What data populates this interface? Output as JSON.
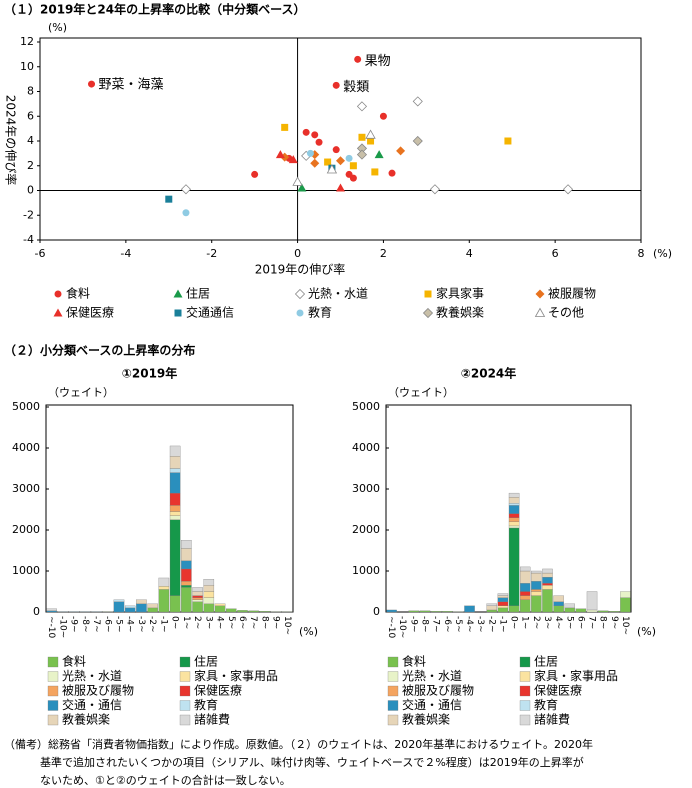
{
  "section_title": "（２）小分類ベースの上昇率の分布",
  "notes": [
    "（備考）総務省「消費者物価指数」により作成。原数値。（２）のウェイトは、2020年基準におけるウェイト。2020年",
    "基準で追加されたいくつかの項目（シリアル、味付け肉等、ウェイトベースで２%程度）は2019年の上昇率が",
    "ないため、①と②のウェイトの合計は一致しない。"
  ],
  "chart_data": [
    {
      "type": "scatter",
      "title": "（１）2019年と24年の上昇率の比較（中分類ベース）",
      "xlabel": "2019年の伸び率",
      "ylabel": "2024年の伸び率",
      "xunit": "(%)",
      "yunit": "(%)",
      "xlim": [
        -6,
        8
      ],
      "ylim": [
        -4,
        12
      ],
      "xticks": [
        -6,
        -4,
        -2,
        0,
        2,
        4,
        6,
        8
      ],
      "yticks": [
        -4,
        -2,
        0,
        2,
        4,
        6,
        8,
        10,
        12
      ],
      "series": [
        {
          "name": "食料",
          "marker": "circle",
          "color": "#e8302a",
          "x": [
            -4.8,
            1.4,
            0.9,
            0.2,
            0.4,
            2.0,
            0.9,
            1.3,
            1.2,
            2.2,
            -1.0,
            -0.2,
            0.5
          ],
          "y": [
            8.6,
            10.6,
            8.5,
            4.7,
            4.5,
            6.0,
            3.3,
            1.0,
            1.3,
            1.4,
            1.3,
            2.6,
            3.9
          ],
          "labels": [
            "野菜・海藻",
            "果物",
            "穀類",
            null,
            null,
            null,
            null,
            null,
            null,
            null,
            null,
            null,
            null
          ]
        },
        {
          "name": "住居",
          "marker": "triangle",
          "color": "#1a9a4a",
          "x": [
            0.1,
            1.9
          ],
          "y": [
            0.2,
            2.9
          ]
        },
        {
          "name": "光熱・水道",
          "marker": "diamond",
          "color": "#ffffff",
          "edgecolor": "#888888",
          "x": [
            -2.6,
            3.2,
            6.3,
            2.8,
            1.5,
            0.2
          ],
          "y": [
            0.1,
            0.1,
            0.1,
            7.2,
            6.8,
            2.8
          ]
        },
        {
          "name": "家具家事",
          "marker": "square",
          "color": "#f5b400",
          "x": [
            -0.3,
            1.5,
            1.7,
            1.8,
            1.3,
            4.9,
            0.7
          ],
          "y": [
            5.1,
            4.3,
            4.0,
            1.5,
            2.0,
            4.0,
            2.3
          ]
        },
        {
          "name": "被服履物",
          "marker": "diamond",
          "color": "#e8731f",
          "x": [
            2.4,
            0.4,
            1.0,
            0.4,
            -0.3
          ],
          "y": [
            3.2,
            2.9,
            2.4,
            2.2,
            2.7
          ]
        },
        {
          "name": "保健医療",
          "marker": "triangle",
          "color": "#e8302a",
          "x": [
            -0.4,
            1.0,
            -0.1
          ],
          "y": [
            2.9,
            0.2,
            2.5
          ]
        },
        {
          "name": "交通通信",
          "marker": "square",
          "color": "#1a7f99",
          "x": [
            -3.0,
            0.8
          ],
          "y": [
            -0.7,
            1.8
          ]
        },
        {
          "name": "教育",
          "marker": "circle",
          "color": "#8fcbe3",
          "x": [
            -2.6,
            0.3,
            1.2
          ],
          "y": [
            -1.8,
            3.0,
            2.6
          ]
        },
        {
          "name": "教養娯楽",
          "marker": "diamond",
          "color": "#c8bfa8",
          "edgecolor": "#888888",
          "x": [
            1.5,
            2.8,
            1.5
          ],
          "y": [
            3.4,
            4.0,
            2.9
          ]
        },
        {
          "name": "その他",
          "marker": "triangle",
          "color": "#ffffff",
          "edgecolor": "#888888",
          "x": [
            0.0,
            1.7,
            0.8
          ],
          "y": [
            0.7,
            4.5,
            1.7
          ]
        }
      ]
    },
    {
      "type": "bar",
      "stacked": true,
      "title": "①2019年",
      "ylabel": "（ウェイト）",
      "xunit": "(%)",
      "ylim": [
        0,
        5000
      ],
      "yticks": [
        0,
        1000,
        2000,
        3000,
        4000,
        5000
      ],
      "categories": [
        "~-10",
        "-10~",
        "-9~",
        "-8~",
        "-7~",
        "-6~",
        "-5~",
        "-4~",
        "-3~",
        "-2~",
        "-1~",
        "0~",
        "1~",
        "2~",
        "3~",
        "4~",
        "5~",
        "6~",
        "7~",
        "8~",
        "9~",
        "10~"
      ],
      "series": [
        {
          "name": "食料",
          "color": "#79c14f",
          "values": [
            0,
            0,
            0,
            0,
            0,
            10,
            0,
            0,
            0,
            100,
            550,
            400,
            600,
            250,
            200,
            150,
            80,
            40,
            30,
            20,
            10,
            10
          ]
        },
        {
          "name": "住居",
          "color": "#16984a",
          "values": [
            0,
            0,
            0,
            0,
            0,
            0,
            0,
            0,
            0,
            0,
            0,
            1850,
            50,
            0,
            0,
            0,
            0,
            0,
            0,
            0,
            0,
            0
          ]
        },
        {
          "name": "光熱・水道",
          "color": "#e8f3c8",
          "values": [
            0,
            0,
            0,
            0,
            0,
            0,
            0,
            0,
            0,
            0,
            0,
            100,
            0,
            50,
            150,
            0,
            0,
            0,
            0,
            0,
            0,
            0
          ]
        },
        {
          "name": "家具・家事用品",
          "color": "#fbe3a0",
          "values": [
            0,
            0,
            0,
            0,
            0,
            0,
            0,
            0,
            0,
            0,
            80,
            100,
            0,
            0,
            150,
            50,
            0,
            0,
            0,
            0,
            0,
            0
          ]
        },
        {
          "name": "被服及び履物",
          "color": "#f4a460",
          "values": [
            0,
            0,
            0,
            0,
            0,
            0,
            0,
            0,
            0,
            0,
            0,
            150,
            100,
            50,
            0,
            0,
            0,
            0,
            0,
            0,
            0,
            0
          ]
        },
        {
          "name": "保健医療",
          "color": "#e8352e",
          "values": [
            0,
            0,
            0,
            0,
            0,
            0,
            0,
            0,
            0,
            0,
            0,
            300,
            300,
            50,
            0,
            0,
            0,
            0,
            0,
            0,
            0,
            0
          ]
        },
        {
          "name": "交通・通信",
          "color": "#2a8fbd",
          "values": [
            30,
            10,
            10,
            10,
            10,
            0,
            250,
            100,
            200,
            0,
            0,
            500,
            200,
            0,
            0,
            0,
            0,
            0,
            0,
            0,
            0,
            0
          ]
        },
        {
          "name": "教育",
          "color": "#bfe2f0",
          "values": [
            0,
            0,
            0,
            0,
            0,
            0,
            50,
            50,
            0,
            0,
            0,
            100,
            0,
            0,
            0,
            0,
            0,
            0,
            0,
            0,
            0,
            0
          ]
        },
        {
          "name": "教養娯楽",
          "color": "#e6d5b8",
          "values": [
            0,
            0,
            0,
            0,
            0,
            0,
            0,
            0,
            100,
            100,
            0,
            300,
            300,
            100,
            150,
            0,
            0,
            0,
            0,
            0,
            0,
            0
          ]
        },
        {
          "name": "諸雑費",
          "color": "#d9d9d9",
          "values": [
            50,
            0,
            0,
            0,
            0,
            0,
            0,
            0,
            0,
            0,
            200,
            250,
            200,
            100,
            150,
            0,
            0,
            0,
            0,
            0,
            0,
            0
          ]
        }
      ]
    },
    {
      "type": "bar",
      "stacked": true,
      "title": "②2024年",
      "ylabel": "（ウェイト）",
      "xunit": "(%)",
      "ylim": [
        0,
        5000
      ],
      "yticks": [
        0,
        1000,
        2000,
        3000,
        4000,
        5000
      ],
      "categories": [
        "~-10",
        "-10~",
        "-9~",
        "-8~",
        "-7~",
        "-6~",
        "-5~",
        "-4~",
        "-3~",
        "-2~",
        "-1~",
        "0~",
        "1~",
        "2~",
        "3~",
        "4~",
        "5~",
        "6~",
        "7~",
        "8~",
        "9~",
        "10~"
      ],
      "series": [
        {
          "name": "食料",
          "color": "#79c14f",
          "values": [
            0,
            0,
            30,
            30,
            20,
            20,
            10,
            0,
            0,
            50,
            100,
            150,
            300,
            400,
            550,
            150,
            100,
            80,
            0,
            30,
            20,
            350
          ]
        },
        {
          "name": "住居",
          "color": "#16984a",
          "values": [
            0,
            0,
            0,
            0,
            0,
            0,
            0,
            0,
            0,
            0,
            0,
            1900,
            0,
            0,
            0,
            0,
            0,
            0,
            0,
            0,
            0,
            0
          ]
        },
        {
          "name": "光熱・水道",
          "color": "#e8f3c8",
          "values": [
            0,
            0,
            0,
            0,
            0,
            0,
            0,
            0,
            0,
            0,
            0,
            50,
            0,
            0,
            0,
            0,
            0,
            0,
            50,
            0,
            0,
            150
          ]
        },
        {
          "name": "家具・家事用品",
          "color": "#fbe3a0",
          "values": [
            0,
            0,
            0,
            0,
            0,
            0,
            0,
            0,
            0,
            0,
            50,
            100,
            0,
            100,
            100,
            0,
            0,
            0,
            0,
            0,
            0,
            0
          ]
        },
        {
          "name": "被服及び履物",
          "color": "#f4a460",
          "values": [
            0,
            0,
            0,
            0,
            0,
            0,
            0,
            0,
            0,
            0,
            0,
            100,
            100,
            50,
            0,
            0,
            0,
            0,
            0,
            0,
            0,
            0
          ]
        },
        {
          "name": "保健医療",
          "color": "#e8352e",
          "values": [
            0,
            0,
            0,
            0,
            0,
            0,
            0,
            0,
            0,
            0,
            100,
            100,
            100,
            0,
            50,
            0,
            0,
            0,
            0,
            0,
            0,
            0
          ]
        },
        {
          "name": "交通・通信",
          "color": "#2a8fbd",
          "values": [
            50,
            0,
            0,
            0,
            0,
            0,
            0,
            150,
            0,
            0,
            100,
            200,
            200,
            200,
            150,
            100,
            0,
            0,
            0,
            0,
            0,
            0
          ]
        },
        {
          "name": "教育",
          "color": "#bfe2f0",
          "values": [
            0,
            0,
            0,
            0,
            0,
            0,
            0,
            0,
            0,
            0,
            0,
            50,
            0,
            0,
            0,
            0,
            0,
            0,
            0,
            0,
            0,
            0
          ]
        },
        {
          "name": "教養娯楽",
          "color": "#e6d5b8",
          "values": [
            0,
            0,
            0,
            0,
            0,
            0,
            0,
            0,
            0,
            100,
            50,
            150,
            300,
            200,
            100,
            150,
            0,
            0,
            0,
            0,
            0,
            0
          ]
        },
        {
          "name": "諸雑費",
          "color": "#d9d9d9",
          "values": [
            0,
            0,
            0,
            0,
            0,
            0,
            0,
            0,
            0,
            50,
            50,
            100,
            100,
            50,
            100,
            0,
            100,
            0,
            450,
            0,
            0,
            0
          ]
        }
      ]
    }
  ]
}
